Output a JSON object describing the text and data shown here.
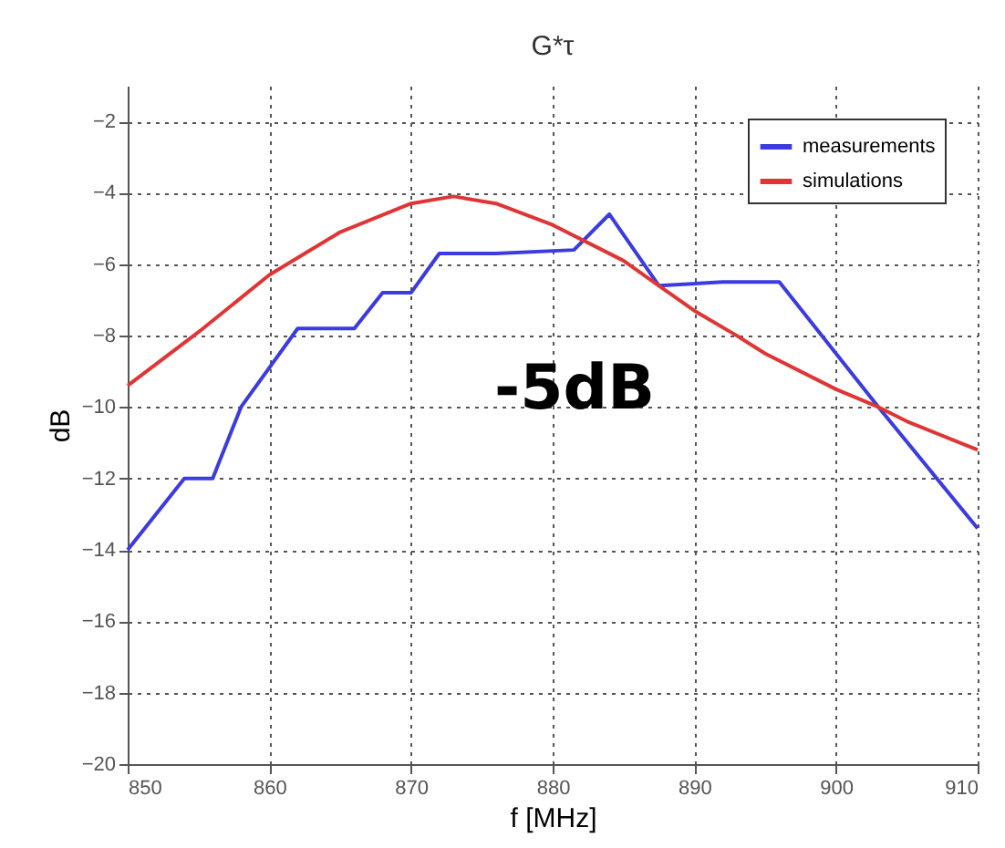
{
  "chart_data": {
    "type": "line",
    "title": "G*τ",
    "xlabel": "f [MHz]",
    "ylabel": "dB",
    "xlim": [
      850,
      910
    ],
    "xticks": [
      850,
      860,
      870,
      880,
      890,
      900,
      910
    ],
    "ylim": [
      -20,
      -1
    ],
    "yticks": [
      -20,
      -18,
      -16,
      -14,
      -12,
      -10,
      -8,
      -6,
      -4,
      -2
    ],
    "grid": true,
    "legend": "top right",
    "annotations": [
      "-5dB"
    ],
    "series": [
      {
        "name": "measurements",
        "color": "#3b3be0",
        "x": [
          850,
          854,
          856,
          858,
          862,
          866,
          868,
          870,
          872,
          876,
          881.5,
          884,
          887.5,
          892,
          896,
          903,
          910
        ],
        "values": [
          -14,
          -12,
          -12,
          -10,
          -7.8,
          -7.8,
          -6.8,
          -6.8,
          -5.7,
          -5.7,
          -5.6,
          -4.6,
          -6.6,
          -6.5,
          -6.5,
          -10,
          -13.4
        ]
      },
      {
        "name": "simulations",
        "color": "#e03535",
        "x": [
          850,
          855,
          860,
          865,
          870,
          873,
          876,
          880,
          885,
          887.5,
          890,
          893,
          895,
          900,
          903,
          905,
          910
        ],
        "values": [
          -9.4,
          -7.9,
          -6.3,
          -5.1,
          -4.3,
          -4.1,
          -4.3,
          -4.9,
          -5.9,
          -6.6,
          -7.3,
          -8,
          -8.5,
          -9.5,
          -10,
          -10.4,
          -11.2
        ]
      }
    ]
  }
}
